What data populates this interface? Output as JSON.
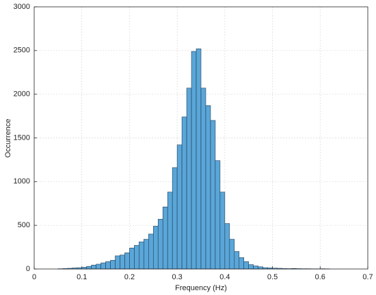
{
  "chart_data": {
    "type": "histogram",
    "x_label": "Frequency (Hz)",
    "y_label": "Occurrence",
    "bins": [
      0.05,
      0.06,
      0.07,
      0.08,
      0.09,
      0.1,
      0.11,
      0.12,
      0.13,
      0.14,
      0.15,
      0.16,
      0.17,
      0.18,
      0.19,
      0.2,
      0.21,
      0.22,
      0.23,
      0.24,
      0.25,
      0.26,
      0.27,
      0.28,
      0.29,
      0.3,
      0.31,
      0.32,
      0.33,
      0.34,
      0.35,
      0.36,
      0.37,
      0.38,
      0.39,
      0.4,
      0.41,
      0.42,
      0.43,
      0.44,
      0.45,
      0.46,
      0.47,
      0.48,
      0.49,
      0.5,
      0.51,
      0.52,
      0.53,
      0.54,
      0.55,
      0.56,
      0.57,
      0.58,
      0.59,
      0.6,
      0.61,
      0.62
    ],
    "values": [
      3,
      5,
      8,
      12,
      15,
      20,
      30,
      45,
      55,
      70,
      85,
      100,
      150,
      160,
      185,
      240,
      270,
      310,
      340,
      400,
      490,
      570,
      710,
      880,
      1160,
      1420,
      1740,
      2070,
      2490,
      2520,
      2070,
      1870,
      1700,
      1240,
      880,
      520,
      340,
      200,
      130,
      85,
      50,
      35,
      25,
      15,
      12,
      10,
      8,
      5,
      4,
      6,
      4,
      3,
      3,
      2,
      2,
      3,
      2
    ],
    "color": "#5aa6d8",
    "edge_color": "#1f3b57",
    "xlim": [
      0,
      0.7
    ],
    "xticks": [
      0,
      0.1,
      0.2,
      0.3,
      0.4,
      0.5,
      0.6,
      0.7
    ],
    "ylim": [
      0,
      3000
    ],
    "yticks": [
      0,
      500,
      1000,
      1500,
      2000,
      2500,
      3000
    ],
    "grid": true
  }
}
